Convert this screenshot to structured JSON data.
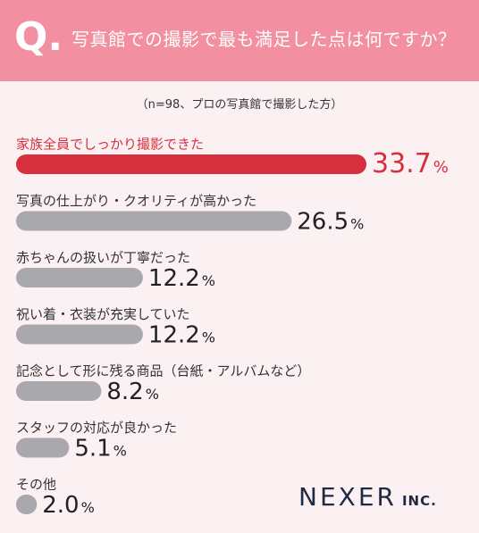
{
  "header": {
    "q_letter": "Q.",
    "question": "写真館での撮影で最も満足した点は何ですか？"
  },
  "subtitle": "（n=98、プロの写真館で撮影した方）",
  "chart_data": {
    "type": "bar",
    "orientation": "horizontal",
    "unit": "%",
    "categories": [
      "家族全員でしっかり撮影できた",
      "写真の仕上がり・クオリティが高かった",
      "赤ちゃんの扱いが丁寧だった",
      "祝い着・衣装が充実していた",
      "記念として形に残る商品（台紙・アルバムなど）",
      "スタッフの対応が良かった",
      "その他"
    ],
    "values": [
      33.7,
      26.5,
      12.2,
      12.2,
      8.2,
      5.1,
      2.0
    ],
    "highlight_index": 0,
    "colors": {
      "highlight": "#d6303f",
      "default": "#a8a8ad",
      "label": "#333333",
      "value": "#222222"
    }
  },
  "logo": {
    "main": "NEXER",
    "suffix": "INC."
  }
}
